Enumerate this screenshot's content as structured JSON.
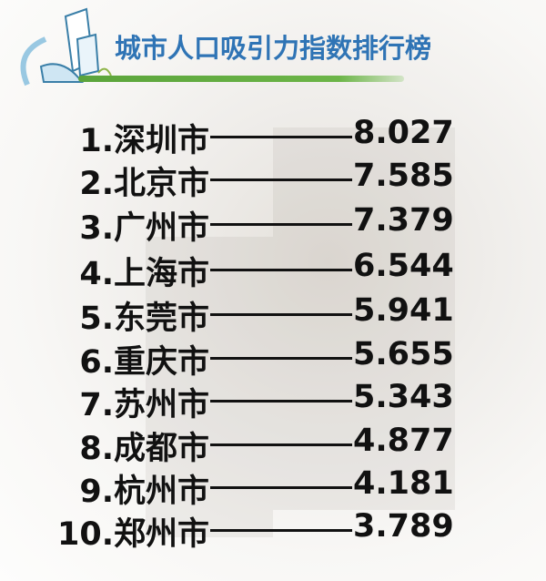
{
  "title": "城市人口吸引力指数排行榜",
  "colors": {
    "title": "#2f74b5",
    "bar": "#5ba43b",
    "text": "#111111"
  },
  "ranking": [
    {
      "label": "1.深圳市",
      "value": "8.027"
    },
    {
      "label": "2.北京市",
      "value": "7.585"
    },
    {
      "label": "3.广州市",
      "value": "7.379"
    },
    {
      "label": "4.上海市",
      "value": "6.544"
    },
    {
      "label": "5.东莞市",
      "value": "5.941"
    },
    {
      "label": "6.重庆市",
      "value": "5.655"
    },
    {
      "label": "7.苏州市",
      "value": "5.343"
    },
    {
      "label": "8.成都市",
      "value": "4.877"
    },
    {
      "label": "9.杭州市",
      "value": "4.181"
    },
    {
      "label": "10.郑州市",
      "value": "3.789"
    }
  ]
}
